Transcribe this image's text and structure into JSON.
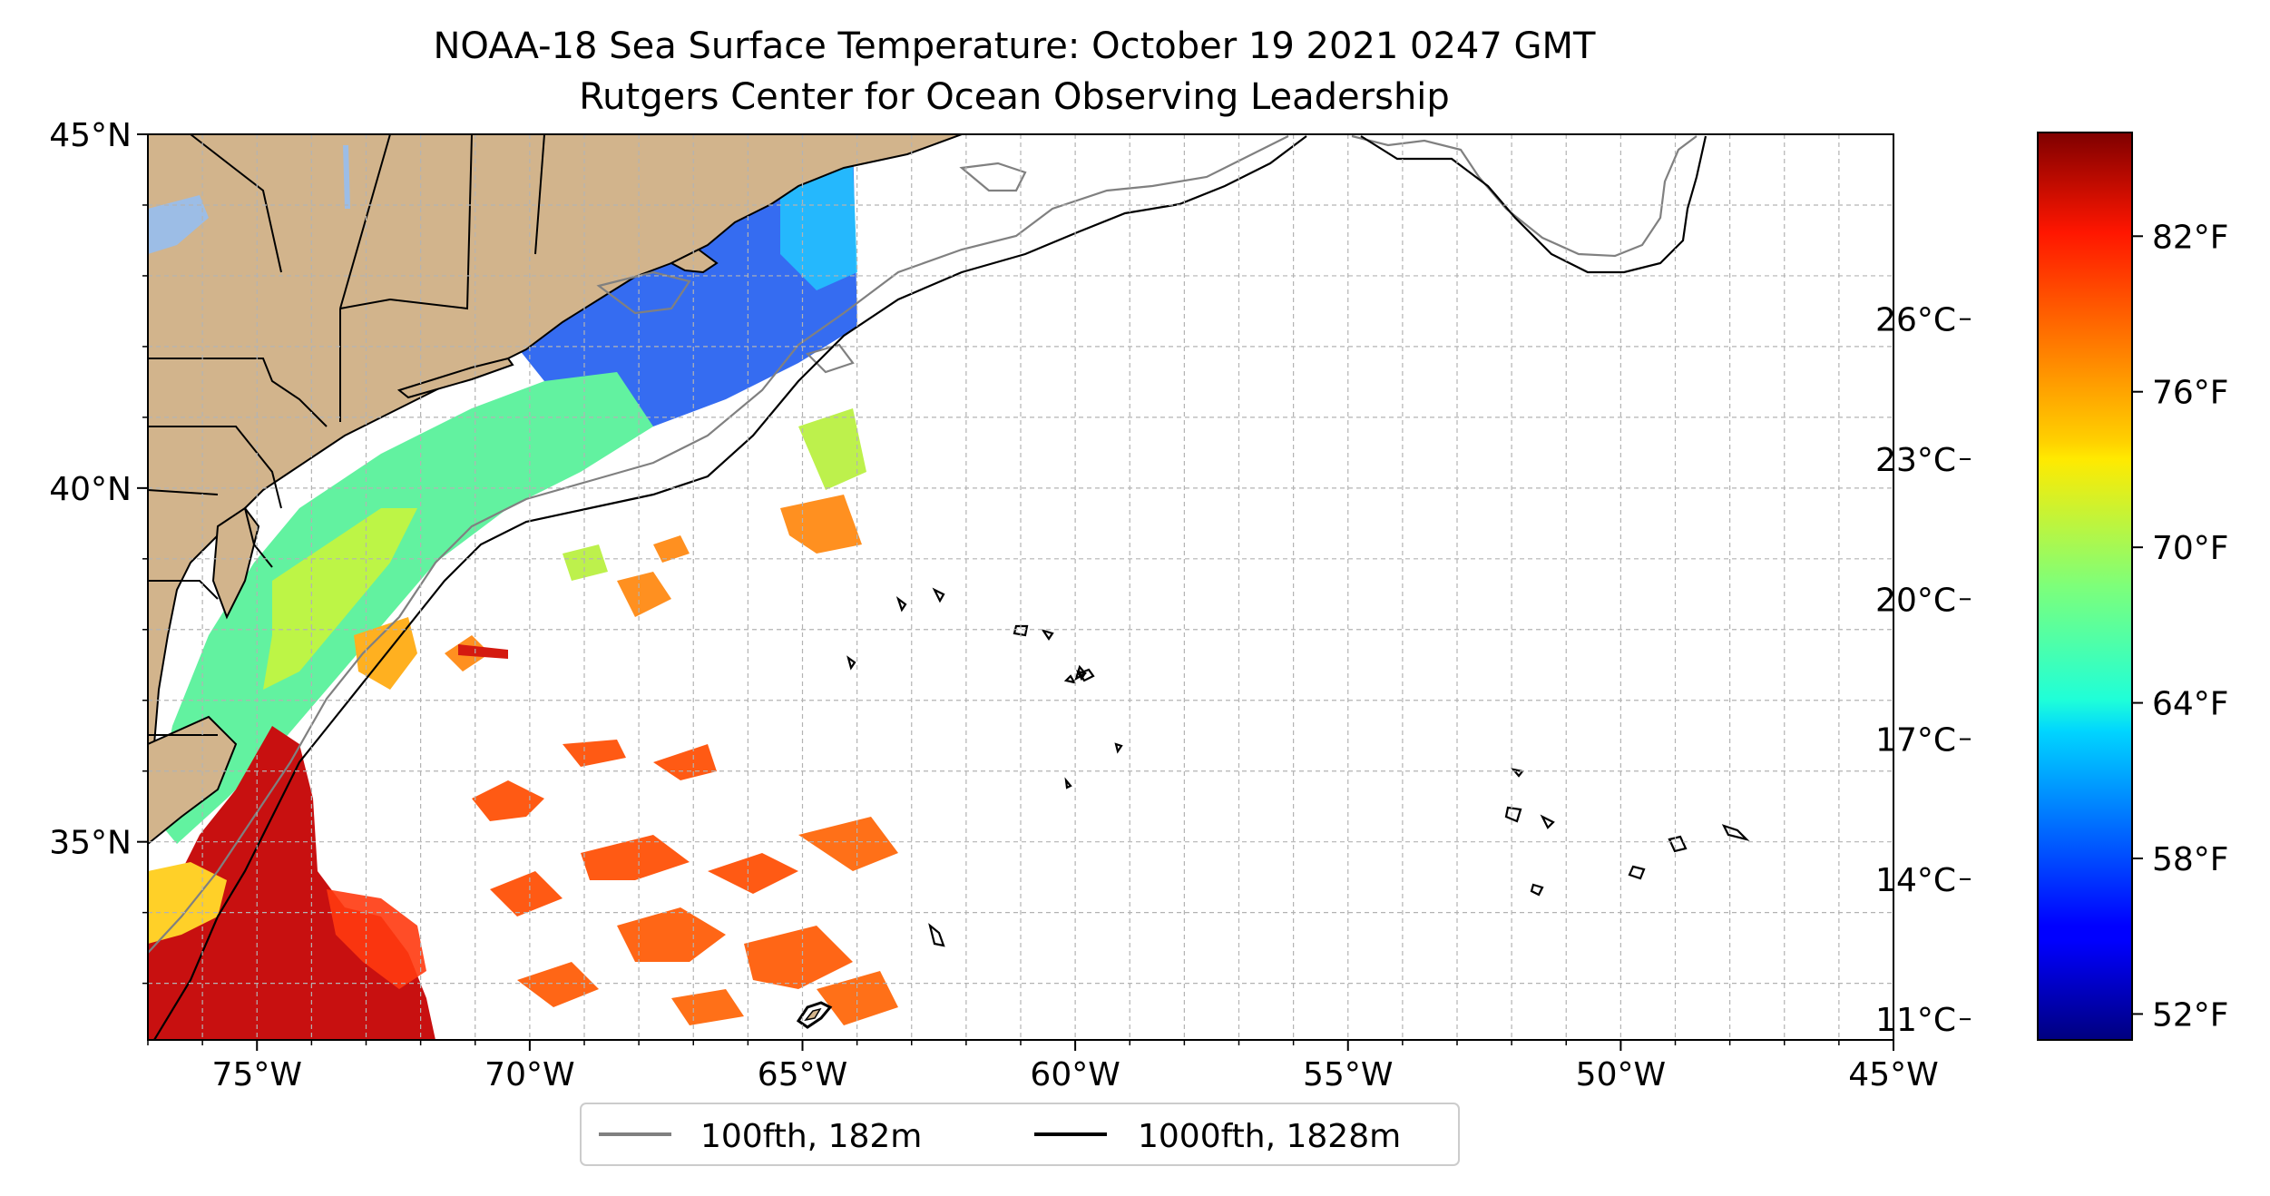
{
  "title": {
    "line1": "NOAA-18 Sea Surface Temperature: October 19 2021 0247 GMT",
    "line2": "Rutgers Center for Ocean Observing Leadership"
  },
  "map": {
    "lon_range": [
      -77,
      -45
    ],
    "lat_range": [
      32.2,
      45
    ],
    "x_ticks": [
      {
        "lon": -75,
        "label": "75°W"
      },
      {
        "lon": -70,
        "label": "70°W"
      },
      {
        "lon": -65,
        "label": "65°W"
      },
      {
        "lon": -60,
        "label": "60°W"
      },
      {
        "lon": -55,
        "label": "55°W"
      },
      {
        "lon": -50,
        "label": "50°W"
      },
      {
        "lon": -45,
        "label": "45°W"
      }
    ],
    "y_ticks": [
      {
        "lat": 45,
        "label": "45°N"
      },
      {
        "lat": 40,
        "label": "40°N"
      },
      {
        "lat": 35,
        "label": "35°N"
      }
    ],
    "gridlines": true,
    "land_color": "#d2b48c",
    "lake_color": "#9cbde6"
  },
  "legend": {
    "placement": "bottom-center",
    "items": [
      {
        "label": "100fth, 182m",
        "color": "#808080"
      },
      {
        "label": "1000fth, 1828m",
        "color": "#000000"
      }
    ]
  },
  "colorbar": {
    "colormap": "jet",
    "range_f": [
      51,
      86
    ],
    "fahrenheit_ticks": [
      {
        "value": 52,
        "label": "52°F"
      },
      {
        "value": 58,
        "label": "58°F"
      },
      {
        "value": 64,
        "label": "64°F"
      },
      {
        "value": 70,
        "label": "70°F"
      },
      {
        "value": 76,
        "label": "76°F"
      },
      {
        "value": 82,
        "label": "82°F"
      }
    ],
    "celsius_ticks": [
      {
        "value": 11,
        "label": "11°C"
      },
      {
        "value": 14,
        "label": "14°C"
      },
      {
        "value": 17,
        "label": "17°C"
      },
      {
        "value": 20,
        "label": "20°C"
      },
      {
        "value": 23,
        "label": "23°C"
      },
      {
        "value": 26,
        "label": "26°C"
      }
    ]
  }
}
